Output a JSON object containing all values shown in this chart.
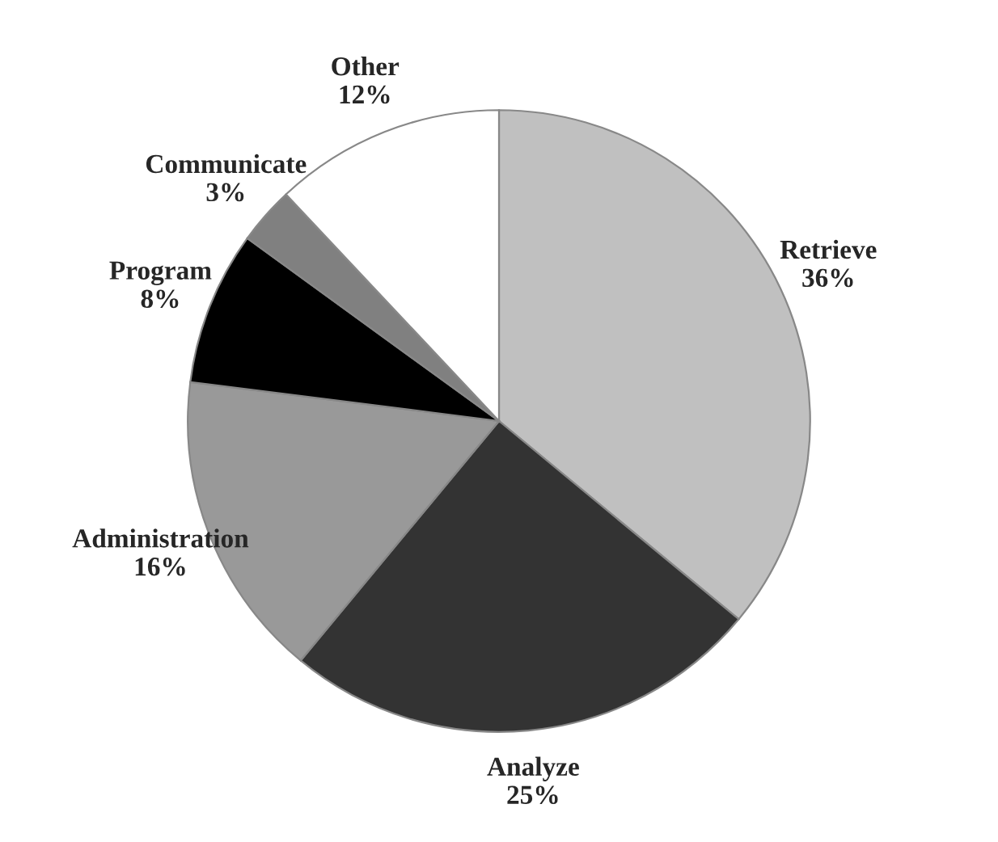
{
  "chart_data": {
    "type": "pie",
    "categories": [
      "Retrieve",
      "Analyze",
      "Administration",
      "Program",
      "Communicate",
      "Other"
    ],
    "values": [
      36,
      25,
      16,
      8,
      3,
      12
    ],
    "value_labels": [
      "36%",
      "25%",
      "16%",
      "8%",
      "3%",
      "12%"
    ],
    "colors": [
      "#c0c0c0",
      "#333333",
      "#999999",
      "#000000",
      "#808080",
      "#ffffff"
    ],
    "legend": false
  }
}
